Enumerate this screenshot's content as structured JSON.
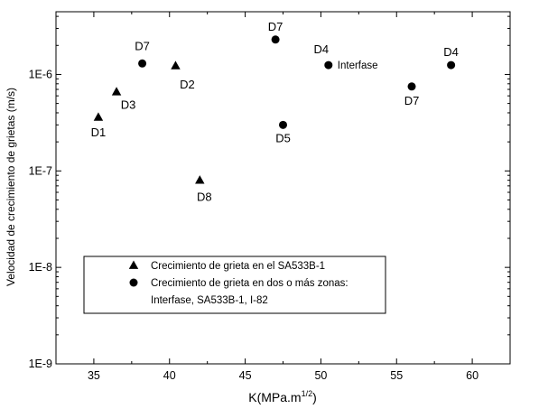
{
  "chart_data": {
    "type": "scatter",
    "xlabel_main": "K(MPa.m",
    "xlabel_sup": "1/2",
    "xlabel_end": ")",
    "ylabel": "Velocidad de crecimiento de grietas (m/s)",
    "xlim": [
      32.5,
      62.5
    ],
    "ylim_log10": [
      -9,
      -5.35
    ],
    "y_scale": "log",
    "x_ticks": [
      35,
      40,
      45,
      50,
      55,
      60
    ],
    "x_tick_labels": [
      "35",
      "40",
      "45",
      "50",
      "55",
      "60"
    ],
    "y_ticks_log10": [
      -9,
      -8,
      -7,
      -6
    ],
    "y_tick_labels": [
      "1E-9",
      "1E-8",
      "1E-7",
      "1E-6"
    ],
    "grid": false,
    "series": [
      {
        "name": "Crecimiento de grieta en el SA533B-1",
        "marker": "triangle",
        "color": "#000000",
        "points": [
          {
            "x": 35.3,
            "y": 3.6e-07,
            "label": "D1"
          },
          {
            "x": 36.5,
            "y": 6.6e-07,
            "label": "D3"
          },
          {
            "x": 40.4,
            "y": 1.23e-06,
            "label": "D2"
          },
          {
            "x": 42.0,
            "y": 8e-08,
            "label": "D8"
          }
        ]
      },
      {
        "name": "Crecimiento de grieta en dos o más zonas:\nInterfase, SA533B-1, I-82",
        "name_line1": "Crecimiento de grieta en dos o más zonas:",
        "name_line2": "Interfase, SA533B-1, I-82",
        "marker": "circle",
        "color": "#000000",
        "points": [
          {
            "x": 38.2,
            "y": 1.3e-06,
            "label": "D7"
          },
          {
            "x": 47.0,
            "y": 2.3e-06,
            "label": "D7"
          },
          {
            "x": 47.5,
            "y": 3e-07,
            "label": "D5"
          },
          {
            "x": 50.5,
            "y": 1.25e-06,
            "label": "D4"
          },
          {
            "x": 56.0,
            "y": 7.5e-07,
            "label": "D7"
          },
          {
            "x": 58.6,
            "y": 1.25e-06,
            "label": "D4"
          }
        ]
      }
    ],
    "annotations": [
      {
        "text": "Interfase",
        "x": 50.5,
        "y": 1.25e-06
      }
    ],
    "legend_position": "bottom-left"
  }
}
